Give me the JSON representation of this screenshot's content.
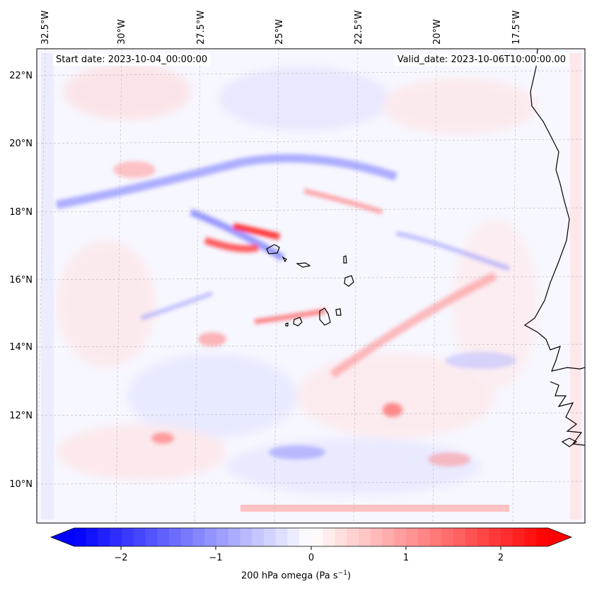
{
  "map": {
    "start_date": "Start date: 2023-10-04_00:00:00",
    "valid_date": "Valid_date: 2023-10-06T10:00:00.00",
    "lon_labels": [
      "32.5°W",
      "30°W",
      "27.5°W",
      "25°W",
      "22.5°W",
      "20°W",
      "17.5°W"
    ],
    "lat_labels": [
      "22°N",
      "20°N",
      "18°N",
      "16°N",
      "14°N",
      "12°N",
      "10°N"
    ],
    "colorbar": {
      "ticks": [
        "−2",
        "−1",
        "0",
        "1",
        "2"
      ],
      "label_main": "200 hPa omega (Pa s",
      "label_sup": "−1",
      "label_end": ")",
      "min": -2.7,
      "max": 2.7,
      "neg_color": "#0000ff",
      "pos_color": "#ff0000"
    },
    "coastline_color": "#000000",
    "grid": true
  }
}
